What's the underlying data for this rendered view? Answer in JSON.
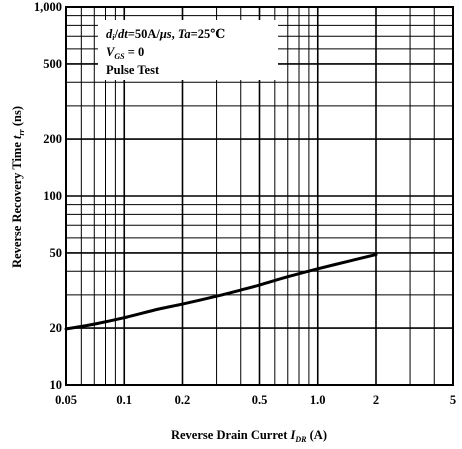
{
  "chart_data": {
    "type": "line",
    "x_scale": "log",
    "y_scale": "log",
    "xlim": [
      0.05,
      5
    ],
    "ylim": [
      10,
      1000
    ],
    "grid": true,
    "xlabel": {
      "text": "Reverse Drain Curret ",
      "symbol": "I",
      "symbol_sub": "DR",
      "unit": " (A)"
    },
    "ylabel": {
      "text": "Reverse Recovery Time ",
      "symbol": "t",
      "symbol_sub": "rr",
      "unit": " (ns)"
    },
    "x_ticks": [
      {
        "value": 0.05,
        "label": "0.05"
      },
      {
        "value": 0.1,
        "label": "0.1"
      },
      {
        "value": 0.2,
        "label": "0.2"
      },
      {
        "value": 0.5,
        "label": "0.5"
      },
      {
        "value": 1,
        "label": "1.0"
      },
      {
        "value": 2,
        "label": "2"
      },
      {
        "value": 5,
        "label": "5"
      }
    ],
    "y_ticks": [
      {
        "value": 10,
        "label": "10"
      },
      {
        "value": 20,
        "label": "20"
      },
      {
        "value": 50,
        "label": "50"
      },
      {
        "value": 100,
        "label": "100"
      },
      {
        "value": 200,
        "label": "200"
      },
      {
        "value": 500,
        "label": "500"
      },
      {
        "value": 1000,
        "label": "1,000"
      }
    ],
    "annotations": [
      {
        "id": "line1",
        "text": "di/dt = 50A/μs, Ta = 25℃"
      },
      {
        "id": "line2",
        "symbol": "V",
        "symbol_sub": "GS",
        "text": " = 0"
      },
      {
        "id": "line3",
        "text": "Pulse Test"
      }
    ],
    "series": [
      {
        "x": [
          0.05,
          0.07,
          0.1,
          0.15,
          0.2,
          0.3,
          0.4,
          0.5,
          0.7,
          1.0,
          1.5,
          2.0
        ],
        "y": [
          19.8,
          21.0,
          22.7,
          25.2,
          26.8,
          29.5,
          31.8,
          33.8,
          37.4,
          41.2,
          45.6,
          49.0
        ]
      }
    ]
  }
}
